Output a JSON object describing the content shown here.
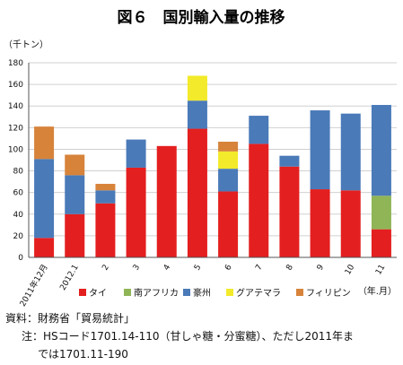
{
  "chart_data": {
    "type": "bar",
    "stacked": true,
    "title": "図６　国別輸入量の推移",
    "ylabel": "（千トン）",
    "xlabel": "（年.月）",
    "ylim": [
      0,
      180
    ],
    "yticks": [
      0,
      20,
      40,
      60,
      80,
      100,
      120,
      140,
      160,
      180
    ],
    "grid": true,
    "legend_position": "bottom",
    "categories": [
      "2011年12月",
      "2012.1",
      "2",
      "3",
      "4",
      "5",
      "6",
      "7",
      "8",
      "9",
      "10",
      "11"
    ],
    "series": [
      {
        "name": "タイ",
        "color": "#e41f1f",
        "values": [
          18,
          40,
          50,
          83,
          103,
          119,
          61,
          105,
          84,
          63,
          62,
          26
        ]
      },
      {
        "name": "南アフリカ",
        "color": "#8fb556",
        "values": [
          0,
          0,
          0,
          0,
          0,
          0,
          0,
          0,
          0,
          0,
          0,
          31
        ]
      },
      {
        "name": "豪州",
        "color": "#4a7ab8",
        "values": [
          73,
          36,
          12,
          26,
          0,
          26,
          21,
          26,
          10,
          73,
          71,
          84
        ]
      },
      {
        "name": "グアテマラ",
        "color": "#f2ea2a",
        "values": [
          0,
          0,
          0,
          0,
          0,
          23,
          16,
          0,
          0,
          0,
          0,
          0
        ]
      },
      {
        "name": "フィリピン",
        "color": "#d7833a",
        "values": [
          30,
          19,
          6,
          0,
          0,
          0,
          9,
          0,
          0,
          0,
          0,
          0
        ]
      }
    ]
  },
  "notes": {
    "source": "資料：財務省「貿易統計」",
    "note_line1": "注：HSコード1701.14-110（甘しゃ糖・分蜜糖）、ただし2011年ま",
    "note_line2": "では1701.11-190"
  }
}
